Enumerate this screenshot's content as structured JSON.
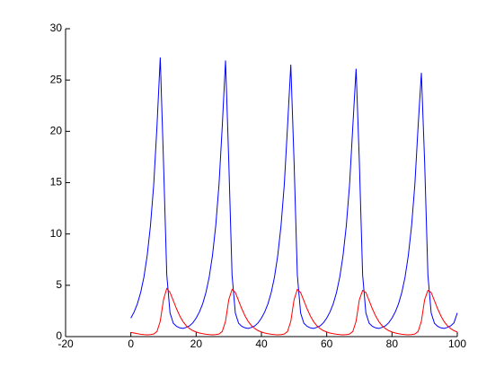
{
  "chart_data": {
    "type": "line",
    "x": [
      0,
      1,
      2,
      3,
      4,
      5,
      6,
      7,
      8,
      9,
      10,
      11,
      12,
      13,
      14,
      15,
      16,
      17,
      18,
      19,
      20,
      21,
      22,
      23,
      24,
      25,
      26,
      27,
      28,
      29,
      30,
      31,
      32,
      33,
      34,
      35,
      36,
      37,
      38,
      39,
      40,
      41,
      42,
      43,
      44,
      45,
      46,
      47,
      48,
      49,
      50,
      51,
      52,
      53,
      54,
      55,
      56,
      57,
      58,
      59,
      60,
      61,
      62,
      63,
      64,
      65,
      66,
      67,
      68,
      69,
      70,
      71,
      72,
      73,
      74,
      75,
      76,
      77,
      78,
      79,
      80,
      81,
      82,
      83,
      84,
      85,
      86,
      87,
      88,
      89,
      90,
      91,
      92,
      93,
      94,
      95,
      96,
      97,
      98,
      99,
      100
    ],
    "series": [
      {
        "color": "#0000ff",
        "values": [
          1.8,
          2.4,
          3.2,
          4.3,
          5.8,
          7.9,
          10.8,
          14.8,
          20.5,
          27.2,
          17,
          6,
          2.3,
          1.3,
          1.0,
          0.85,
          0.8,
          0.9,
          1.05,
          1.35,
          1.8,
          2.4,
          3.2,
          4.3,
          5.8,
          7.9,
          10.8,
          14.8,
          20.5,
          26.9,
          17,
          6,
          2.3,
          1.3,
          1.0,
          0.85,
          0.8,
          0.9,
          1.05,
          1.35,
          1.8,
          2.4,
          3.2,
          4.3,
          5.8,
          7.9,
          10.8,
          14.8,
          20.5,
          26.5,
          17,
          6,
          2.3,
          1.3,
          1.0,
          0.85,
          0.8,
          0.9,
          1.05,
          1.35,
          1.8,
          2.4,
          3.2,
          4.3,
          5.8,
          7.9,
          10.8,
          14.8,
          20.5,
          26.1,
          17,
          6,
          2.3,
          1.3,
          1.0,
          0.85,
          0.8,
          0.9,
          1.05,
          1.35,
          1.8,
          2.4,
          3.2,
          4.3,
          5.8,
          7.9,
          10.8,
          14.8,
          20.5,
          25.7,
          17,
          6,
          2.3,
          1.3,
          1.0,
          0.85,
          0.8,
          0.9,
          1.05,
          1.35,
          2.3
        ]
      },
      {
        "color": "#ff0000",
        "values": [
          0.4,
          0.35,
          0.28,
          0.23,
          0.2,
          0.18,
          0.2,
          0.25,
          0.5,
          1.5,
          3.6,
          4.7,
          4.3,
          3.5,
          2.7,
          2.0,
          1.45,
          1.05,
          0.78,
          0.58,
          0.45,
          0.35,
          0.28,
          0.23,
          0.2,
          0.18,
          0.2,
          0.25,
          0.5,
          1.5,
          3.6,
          4.6,
          4.3,
          3.5,
          2.7,
          2.0,
          1.45,
          1.05,
          0.78,
          0.58,
          0.45,
          0.35,
          0.28,
          0.23,
          0.2,
          0.18,
          0.2,
          0.25,
          0.5,
          1.5,
          3.6,
          4.6,
          4.3,
          3.5,
          2.7,
          2.0,
          1.45,
          1.05,
          0.78,
          0.58,
          0.45,
          0.35,
          0.28,
          0.23,
          0.2,
          0.18,
          0.2,
          0.25,
          0.5,
          1.5,
          3.6,
          4.5,
          4.3,
          3.5,
          2.7,
          2.0,
          1.45,
          1.05,
          0.78,
          0.58,
          0.45,
          0.35,
          0.28,
          0.23,
          0.2,
          0.18,
          0.2,
          0.25,
          0.5,
          1.5,
          3.6,
          4.5,
          4.3,
          3.5,
          2.7,
          2.0,
          1.45,
          1.05,
          0.78,
          0.58,
          0.45
        ]
      }
    ],
    "xlim": [
      -20,
      100
    ],
    "xticks": [
      -20,
      0,
      20,
      40,
      60,
      80,
      100
    ],
    "ylim": [
      0,
      30
    ],
    "yticks": [
      0,
      5,
      10,
      15,
      20,
      25,
      30
    ]
  }
}
